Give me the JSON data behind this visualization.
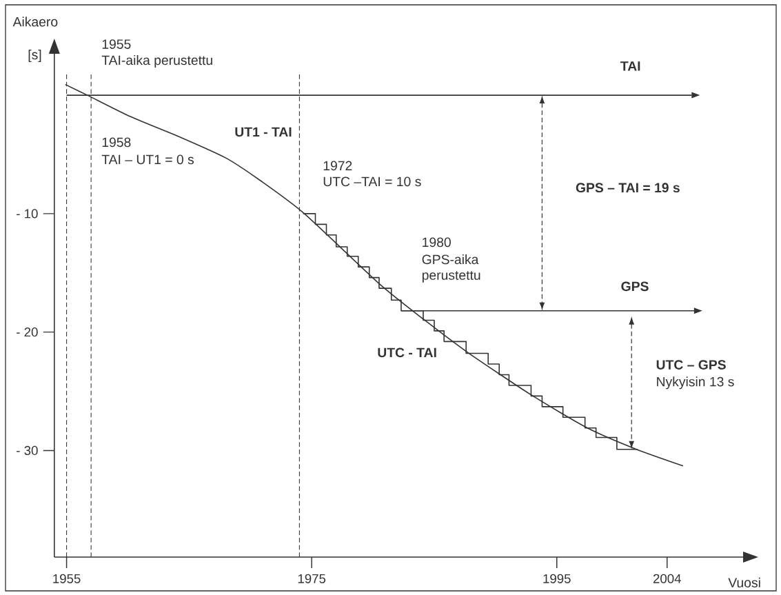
{
  "chart_data": {
    "type": "line",
    "xlabel": "Vuosi",
    "ylabel": "Aikaero",
    "xlim": [
      1954,
      2010.2
    ],
    "ylim": [
      -39,
      3.5
    ],
    "xticks": [
      1955,
      1975,
      1995,
      2004
    ],
    "yticks": [
      {
        "value": -10,
        "label": "- 10"
      },
      {
        "value": -20,
        "label": "- 20"
      },
      {
        "value": -30,
        "label": "- 30"
      }
    ],
    "series": [
      {
        "name": "TAI",
        "type": "line",
        "color": "#333333",
        "x": [
          1955,
          2006
        ],
        "values": [
          0,
          0
        ]
      },
      {
        "name": "UT1 - TAI",
        "type": "line",
        "color": "#333333",
        "x": [
          1954.9,
          1956.7,
          1960.2,
          1964.4,
          1968.0,
          1970.8,
          1974.4,
          1980.6,
          1984.1,
          1987.7,
          1992.9,
          1997.5,
          2001.5,
          2005.3
        ],
        "values": [
          0.9,
          0,
          -1.8,
          -3.6,
          -5.3,
          -7.2,
          -10.0,
          -16.0,
          -18.9,
          -21.7,
          -25.3,
          -28.1,
          -29.9,
          -31.3
        ]
      },
      {
        "name": "UTC - TAI",
        "type": "step",
        "color": "#333333",
        "x": [
          1974.3,
          1975.3,
          1976.2,
          1977.0,
          1977.9,
          1978.8,
          1979.7,
          1980.5,
          1981.5,
          1982.3,
          1984.1,
          1985.0,
          1985.8,
          1987.6,
          1989.4,
          1990.3,
          1991.1,
          1992.9,
          1993.8,
          1995.5,
          1997.3,
          1998.2,
          1999.9,
          2001.6
        ],
        "values": [
          -10,
          -10.9,
          -11.8,
          -12.8,
          -13.6,
          -14.5,
          -15.4,
          -16.3,
          -17.3,
          -18.2,
          -19.0,
          -19.9,
          -20.8,
          -21.8,
          -22.7,
          -23.6,
          -24.5,
          -25.4,
          -26.3,
          -27.2,
          -28.1,
          -28.9,
          -29.9,
          -29.9
        ]
      },
      {
        "name": "GPS",
        "type": "line",
        "color": "#333333",
        "x": [
          1982.3,
          2006.2
        ],
        "values": [
          -18.2,
          -18.2
        ]
      }
    ],
    "ref_lines": [
      {
        "axis": "x",
        "value": 1955,
        "color": "#333333",
        "line_style": "dashed"
      },
      {
        "axis": "x",
        "value": 1957,
        "color": "#333333",
        "line_style": "dashed"
      },
      {
        "axis": "x",
        "value": 1974,
        "color": "#333333",
        "line_style": "dashed"
      }
    ],
    "annotations": [
      "1955",
      "TAI-aika perustettu",
      "1958",
      "TAI – UT1 = 0 s",
      "1972",
      "UTC –TAI = 10 s",
      "1980",
      "GPS-aika",
      "perustettu",
      "GPS – TAI = 19 s",
      "UTC – GPS",
      "Nykyisin 13 s",
      "[s]"
    ]
  }
}
